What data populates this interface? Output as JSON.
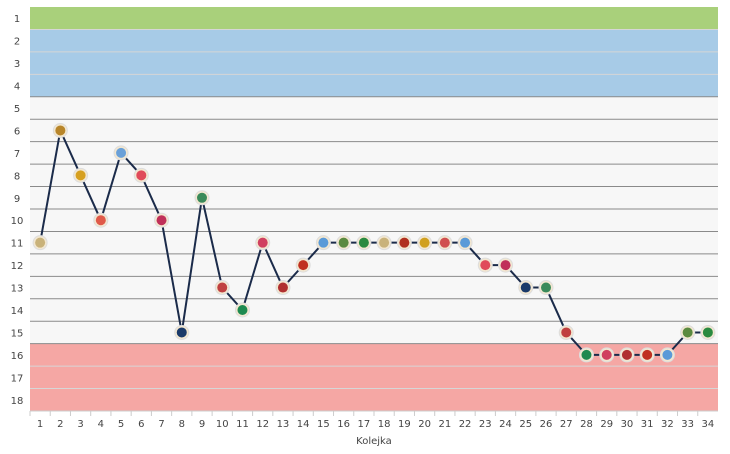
{
  "chart_data": {
    "type": "line",
    "title": "",
    "xlabel": "Kolejka",
    "ylabel": "",
    "x": [
      1,
      2,
      3,
      4,
      5,
      6,
      7,
      8,
      9,
      10,
      11,
      12,
      13,
      14,
      15,
      16,
      17,
      18,
      19,
      20,
      21,
      22,
      23,
      24,
      25,
      26,
      27,
      28,
      29,
      30,
      31,
      32,
      33,
      34
    ],
    "values": [
      11,
      6,
      8,
      10,
      7,
      8,
      10,
      15,
      9,
      13,
      14,
      11,
      13,
      12,
      11,
      11,
      11,
      11,
      11,
      11,
      11,
      11,
      12,
      12,
      13,
      13,
      15,
      16,
      16,
      16,
      16,
      16,
      15,
      15
    ],
    "ylim": [
      1,
      18
    ],
    "y_inverted": true,
    "y_ticks": [
      "1",
      "2",
      "3",
      "4",
      "5",
      "6",
      "7",
      "8",
      "9",
      "10",
      "11",
      "12",
      "13",
      "14",
      "15",
      "16",
      "17",
      "18"
    ],
    "x_ticks": [
      "1",
      "2",
      "3",
      "4",
      "5",
      "6",
      "7",
      "8",
      "9",
      "10",
      "11",
      "12",
      "13",
      "14",
      "15",
      "16",
      "17",
      "18",
      "19",
      "20",
      "21",
      "22",
      "23",
      "24",
      "25",
      "26",
      "27",
      "28",
      "29",
      "30",
      "31",
      "32",
      "33",
      "34"
    ],
    "bands": [
      {
        "from": 1,
        "to": 1,
        "color": "#a9d07b"
      },
      {
        "from": 2,
        "to": 4,
        "color": "#a7cbe7"
      },
      {
        "from": 5,
        "to": 15,
        "color": "#f7f7f7"
      },
      {
        "from": 16,
        "to": 18,
        "color": "#f5a7a4"
      }
    ],
    "line_color": "#1b2b4a",
    "opponent_badge_colors": [
      "#c9b27a",
      "#b8862b",
      "#d6a020",
      "#e05a4a",
      "#6aa0d8",
      "#e04a5a",
      "#c0305a",
      "#1a3a6a",
      "#3a8a5a",
      "#c04040",
      "#1e8a50",
      "#d04060",
      "#b03030",
      "#c03020",
      "#5a9ad8",
      "#5a8a40",
      "#2a8a40",
      "#c9b27a",
      "#b03020",
      "#d0a020",
      "#d05050",
      "#5a9ad8",
      "#e04a5a",
      "#c0305a",
      "#1a3a6a",
      "#3a8a5a",
      "#c04040",
      "#1e8a50",
      "#d04060",
      "#b03030",
      "#c03020",
      "#5a9ad8",
      "#5a8a40",
      "#2a8a40"
    ]
  }
}
